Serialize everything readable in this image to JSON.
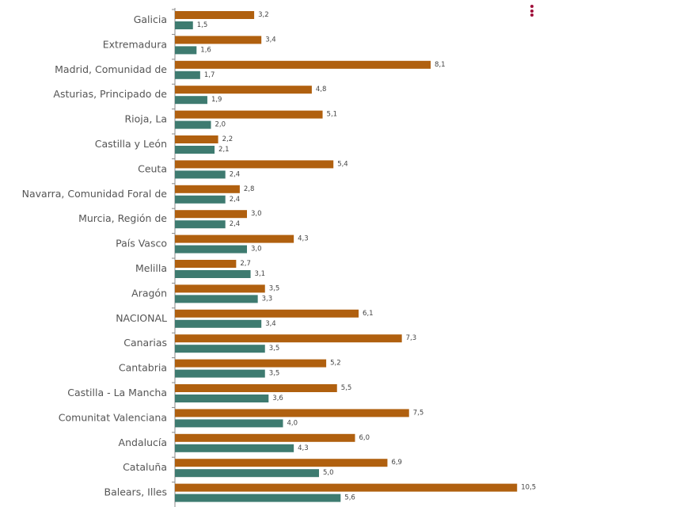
{
  "chart_data": {
    "type": "bar",
    "orientation": "horizontal",
    "categories": [
      "Galicia",
      "Extremadura",
      "Madrid, Comunidad de",
      "Asturias, Principado de",
      "Rioja, La",
      "Castilla y León",
      "Ceuta",
      "Navarra, Comunidad Foral de",
      "Murcia, Región de",
      "País Vasco",
      "Melilla",
      "Aragón",
      "NACIONAL",
      "Canarias",
      "Cantabria",
      "Castilla - La Mancha",
      "Comunitat Valenciana",
      "Andalucía",
      "Cataluña",
      "Balears, Illes"
    ],
    "series": [
      {
        "values": [
          3.2,
          3.4,
          8.1,
          4.8,
          5.1,
          2.2,
          5.4,
          2.8,
          3.0,
          4.3,
          2.7,
          3.5,
          6.1,
          7.3,
          5.2,
          5.5,
          7.5,
          6.0,
          6.9,
          10.5
        ],
        "color": "#b0600f"
      },
      {
        "values": [
          1.5,
          1.6,
          1.7,
          1.9,
          2.0,
          2.1,
          2.4,
          2.4,
          2.4,
          3.0,
          3.1,
          3.3,
          3.4,
          3.5,
          3.5,
          3.6,
          4.0,
          4.3,
          5.0,
          5.6
        ],
        "color": "#3e7b70"
      }
    ],
    "xlim": [
      1,
      11
    ],
    "grid": false,
    "decimal_separator": ","
  },
  "menu": {
    "icon": "vertical-dots-icon",
    "color": "#a0103a"
  }
}
